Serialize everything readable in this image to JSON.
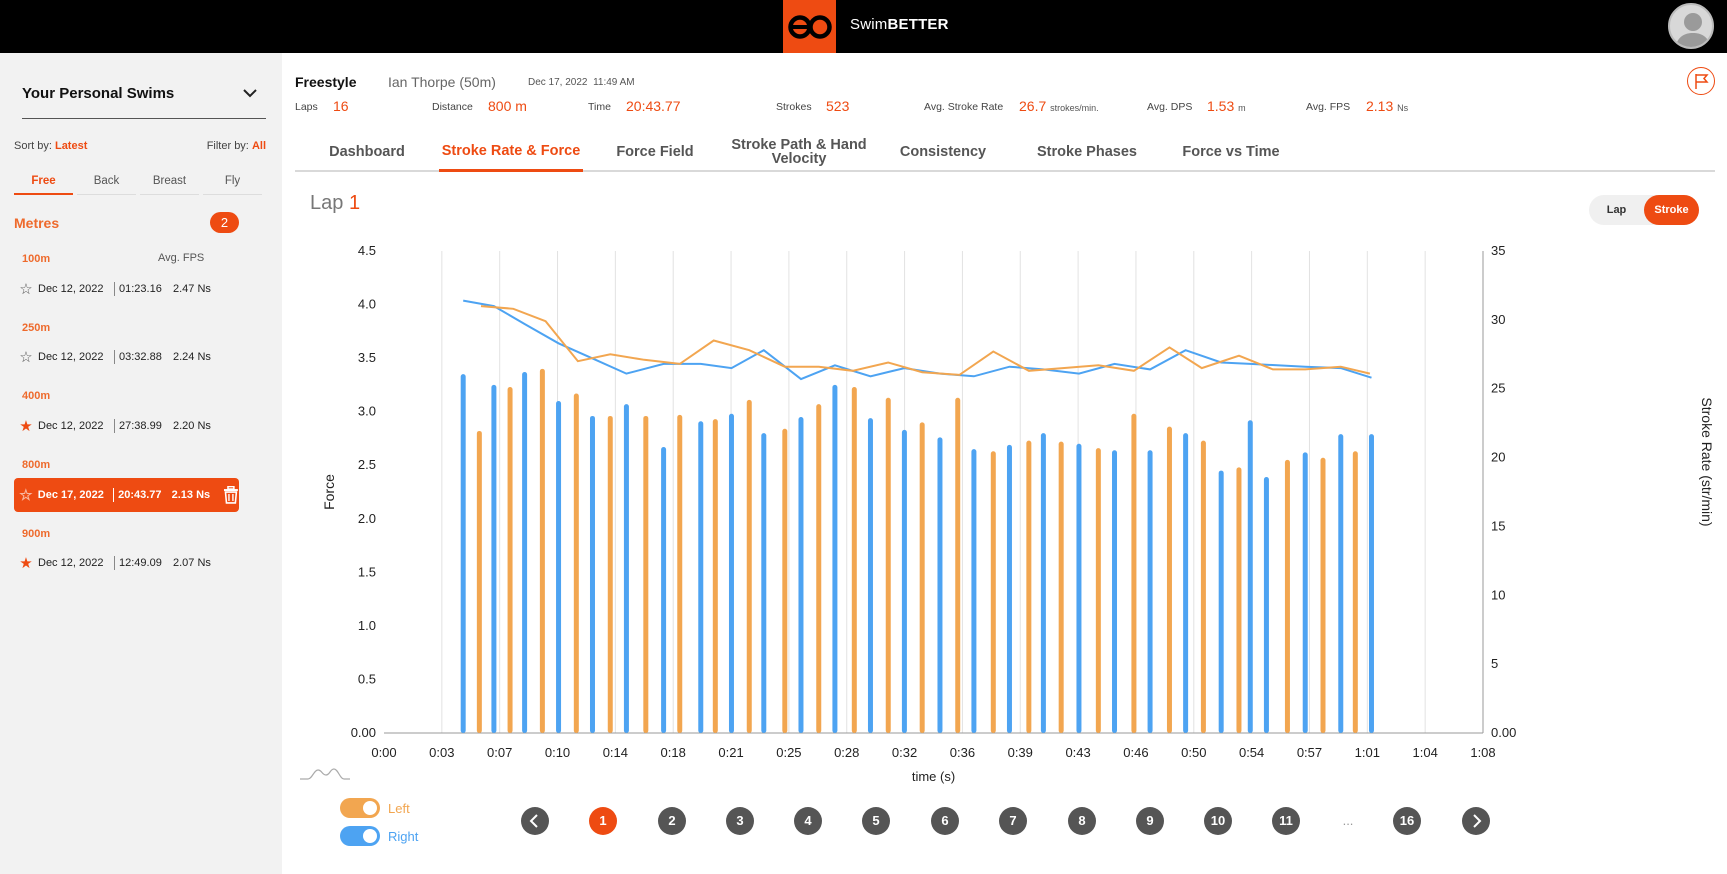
{
  "app": {
    "brand_prefix": "Swim",
    "brand_suffix": "BETTER",
    "logo_text": "eo"
  },
  "sidebar": {
    "title": "Your Personal Swims",
    "sort_label": "Sort by:",
    "sort_value": "Latest",
    "filter_label": "Filter by:",
    "filter_value": "All",
    "strokes": [
      "Free",
      "Back",
      "Breast",
      "Fly"
    ],
    "active_stroke": "Free",
    "section": "Metres",
    "section_count": "2",
    "avg_fps_header": "Avg. FPS",
    "groups": [
      {
        "distance": "100m",
        "swims": [
          {
            "date": "Dec 12, 2022",
            "duration": "01:23.16",
            "fps": "2.47 Ns",
            "favorite": false,
            "selected": false
          }
        ]
      },
      {
        "distance": "250m",
        "swims": [
          {
            "date": "Dec 12, 2022",
            "duration": "03:32.88",
            "fps": "2.24 Ns",
            "favorite": false,
            "selected": false
          }
        ]
      },
      {
        "distance": "400m",
        "swims": [
          {
            "date": "Dec 12, 2022",
            "duration": "27:38.99",
            "fps": "2.20 Ns",
            "favorite": true,
            "selected": false
          }
        ]
      },
      {
        "distance": "800m",
        "swims": [
          {
            "date": "Dec 17, 2022",
            "duration": "20:43.77",
            "fps": "2.13 Ns",
            "favorite": false,
            "selected": true
          }
        ]
      },
      {
        "distance": "900m",
        "swims": [
          {
            "date": "Dec 12, 2022",
            "duration": "12:49.09",
            "fps": "2.07 Ns",
            "favorite": true,
            "selected": false
          }
        ]
      }
    ]
  },
  "header": {
    "stroke": "Freestyle",
    "swimmer": "Ian Thorpe (50m)",
    "date": "Dec 17, 2022",
    "time": "11:49 AM",
    "stats": {
      "laps_label": "Laps",
      "laps": "16",
      "distance_label": "Distance",
      "distance": "800 m",
      "time_label": "Time",
      "time": "20:43.77",
      "strokes_label": "Strokes",
      "strokes": "523",
      "rate_label": "Avg. Stroke Rate",
      "rate": "26.7",
      "rate_unit": "strokes/min.",
      "dps_label": "Avg. DPS",
      "dps": "1.53",
      "dps_unit": "m",
      "fps_label": "Avg. FPS",
      "fps": "2.13",
      "fps_unit": "Ns"
    }
  },
  "tabs": [
    {
      "label": "Dashboard",
      "active": false
    },
    {
      "label": "Stroke Rate & Force",
      "active": true
    },
    {
      "label": "Force Field",
      "active": false
    },
    {
      "label": "Stroke Path & Hand Velocity",
      "active": false
    },
    {
      "label": "Consistency",
      "active": false
    },
    {
      "label": "Stroke Phases",
      "active": false
    },
    {
      "label": "Force vs Time",
      "active": false
    }
  ],
  "lap": {
    "label": "Lap",
    "number": "1"
  },
  "view_toggle": {
    "options": [
      "Lap",
      "Stroke"
    ],
    "active": "Stroke"
  },
  "legend": {
    "left": "Left",
    "right": "Right"
  },
  "colors": {
    "accent": "#ee4b12",
    "left": "#f2a650",
    "right": "#4da3f2"
  },
  "pager": {
    "pages": [
      "1",
      "2",
      "3",
      "4",
      "5",
      "6",
      "7",
      "8",
      "9",
      "10",
      "11",
      "...",
      "16"
    ],
    "active": "1"
  },
  "chart_data": {
    "type": "bar",
    "xlabel": "time (s)",
    "ylabel": "Force",
    "y2label": "Stroke Rate (str/min)",
    "ylim": [
      0,
      4.5
    ],
    "y2lim": [
      0,
      35
    ],
    "y_ticks": [
      "0.00",
      "0.5",
      "1.0",
      "1.5",
      "2.0",
      "2.5",
      "3.0",
      "3.5",
      "4.0",
      "4.5"
    ],
    "y2_ticks": [
      "0.00",
      "5",
      "10",
      "15",
      "20",
      "25",
      "30",
      "35"
    ],
    "x_ticks": [
      "0:00",
      "0:03",
      "0:07",
      "0:10",
      "0:14",
      "0:18",
      "0:21",
      "0:25",
      "0:28",
      "0:32",
      "0:36",
      "0:39",
      "0:43",
      "0:46",
      "0:50",
      "0:54",
      "0:57",
      "1:01",
      "1:04",
      "1:08"
    ],
    "xlim_seconds": [
      0,
      68
    ],
    "grid": true,
    "series": [
      {
        "name": "Right",
        "kind": "bar",
        "x": [
          4.9,
          6.8,
          8.7,
          10.8,
          12.9,
          15.0,
          17.3,
          19.6,
          21.5,
          23.5,
          25.8,
          27.9,
          30.1,
          32.2,
          34.4,
          36.5,
          38.7,
          40.8,
          43.0,
          45.2,
          47.4,
          49.6,
          51.8,
          53.6,
          54.6,
          57.0,
          59.2,
          61.1
        ],
        "values": [
          3.35,
          3.25,
          3.37,
          3.1,
          2.96,
          3.07,
          2.67,
          2.91,
          2.98,
          2.8,
          2.95,
          3.25,
          2.94,
          2.83,
          2.76,
          2.65,
          2.69,
          2.8,
          2.7,
          2.64,
          2.64,
          2.8,
          2.45,
          2.92,
          2.39,
          2.62,
          2.79,
          2.79
        ]
      },
      {
        "name": "Left",
        "kind": "bar",
        "x": [
          5.9,
          7.8,
          9.8,
          11.9,
          14.0,
          16.2,
          18.3,
          20.5,
          22.6,
          24.8,
          26.9,
          29.1,
          31.2,
          33.3,
          35.5,
          37.7,
          39.9,
          41.9,
          44.2,
          46.4,
          48.6,
          50.7,
          52.9,
          55.9,
          58.1,
          60.1
        ],
        "values": [
          2.82,
          3.23,
          3.4,
          3.17,
          2.96,
          2.96,
          2.97,
          2.93,
          3.11,
          2.84,
          3.07,
          3.23,
          3.13,
          2.9,
          3.13,
          2.63,
          2.73,
          2.72,
          2.66,
          2.98,
          2.86,
          2.73,
          2.48,
          2.55,
          2.57,
          2.63
        ]
      },
      {
        "name": "Right",
        "kind": "line",
        "axis": "y2",
        "x": [
          4.9,
          6.8,
          8.7,
          10.8,
          12.9,
          15.0,
          17.3,
          19.6,
          21.5,
          23.5,
          25.8,
          27.9,
          30.1,
          32.2,
          34.4,
          36.5,
          38.7,
          40.8,
          43.0,
          45.2,
          47.4,
          49.6,
          51.8,
          53.6,
          57.0,
          59.2,
          61.1
        ],
        "values": [
          31.4,
          31.0,
          29.7,
          28.3,
          27.2,
          26.1,
          26.8,
          26.8,
          26.5,
          27.8,
          25.7,
          26.7,
          25.9,
          26.5,
          26.1,
          25.9,
          26.6,
          26.4,
          26.1,
          26.8,
          26.4,
          27.8,
          26.9,
          26.8,
          26.6,
          26.5,
          25.8
        ]
      },
      {
        "name": "Left",
        "kind": "line",
        "axis": "y2",
        "x": [
          6.0,
          8.0,
          10.0,
          12.0,
          14.0,
          16.1,
          18.3,
          20.4,
          22.6,
          24.8,
          26.9,
          29.0,
          31.2,
          33.3,
          35.6,
          37.7,
          39.9,
          42.0,
          44.2,
          46.4,
          48.6,
          50.6,
          52.9,
          55.0,
          57.0,
          59.2,
          61.0
        ],
        "values": [
          31.0,
          30.8,
          29.9,
          27.0,
          27.5,
          27.1,
          26.8,
          28.5,
          27.8,
          26.6,
          26.6,
          26.3,
          26.9,
          26.2,
          26.0,
          27.7,
          26.3,
          26.5,
          26.7,
          26.3,
          28.0,
          26.5,
          27.4,
          26.4,
          26.4,
          26.6,
          26.1
        ]
      }
    ]
  }
}
